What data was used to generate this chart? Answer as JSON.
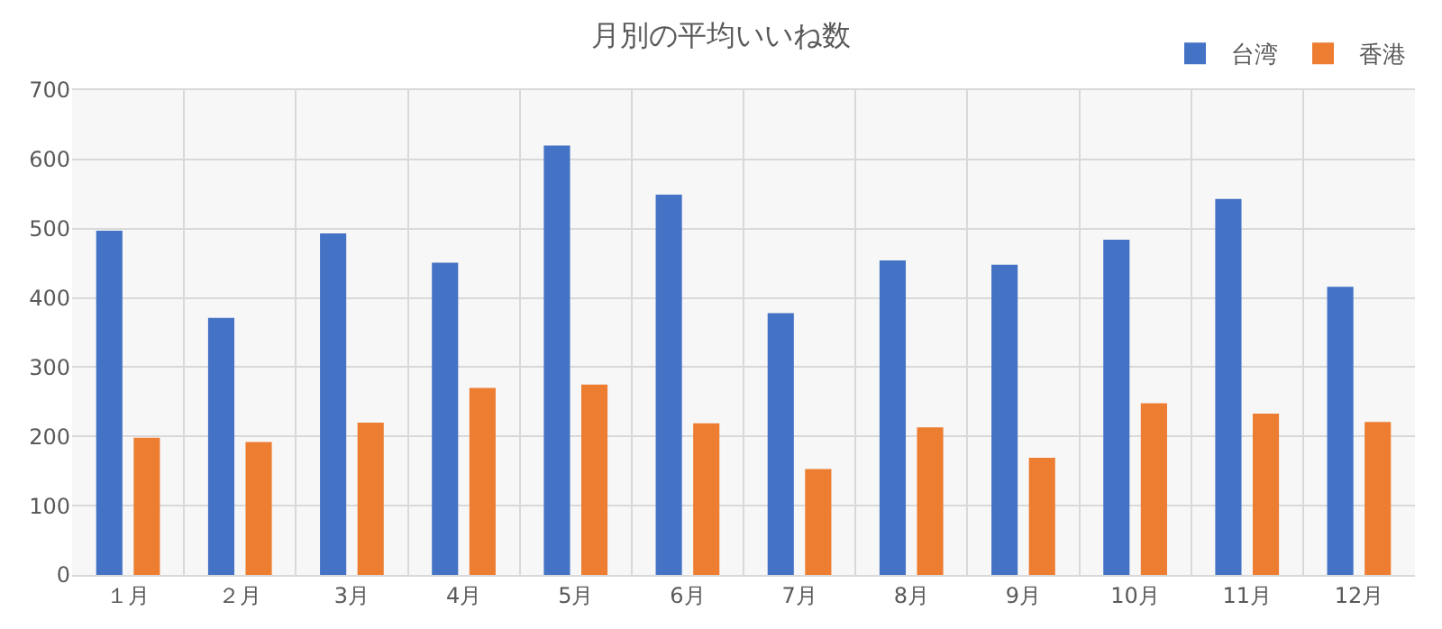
{
  "chart_data": {
    "type": "bar",
    "title": "月別の平均いいね数",
    "categories": [
      "１月",
      "２月",
      "3月",
      "4月",
      "5月",
      "6月",
      "7月",
      "8月",
      "9月",
      "10月",
      "11月",
      "12月"
    ],
    "series": [
      {
        "name": "台湾",
        "color": "#4472c4",
        "values": [
          497,
          371,
          493,
          451,
          620,
          549,
          378,
          454,
          448,
          484,
          543,
          416
        ]
      },
      {
        "name": "香港",
        "color": "#ed7d31",
        "values": [
          198,
          192,
          220,
          270,
          275,
          219,
          153,
          213,
          169,
          248,
          233,
          221
        ]
      }
    ],
    "ylim": [
      0,
      700
    ],
    "yticks": [
      0,
      100,
      200,
      300,
      400,
      500,
      600,
      700
    ],
    "grid": true,
    "legend": "top right"
  }
}
